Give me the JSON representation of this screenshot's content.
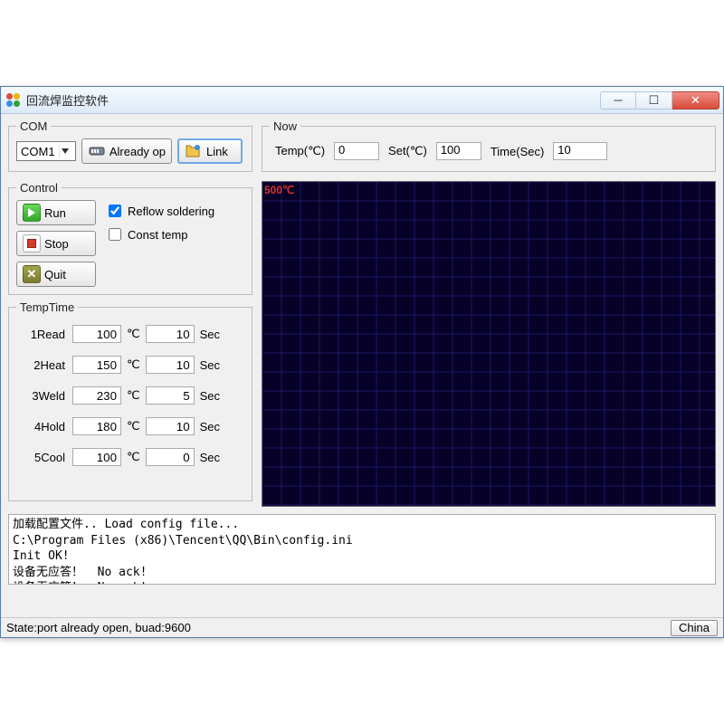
{
  "window": {
    "title": "回流焊监控软件",
    "icon_colors": [
      "#e24b3a",
      "#f2b500",
      "#3a8fdc",
      "#2fa032"
    ]
  },
  "com": {
    "legend": "COM",
    "port_value": "COM1",
    "already_open_label": "Already op",
    "link_label": "Link"
  },
  "now": {
    "legend": "Now",
    "temp_label": "Temp(℃)",
    "temp_value": "0",
    "set_label": "Set(℃)",
    "set_value": "100",
    "time_label": "Time(Sec)",
    "time_value": "10"
  },
  "control": {
    "legend": "Control",
    "run_label": "Run",
    "stop_label": "Stop",
    "quit_label": "Quit",
    "reflow_label": "Reflow soldering",
    "reflow_checked": true,
    "const_label": "Const temp",
    "const_checked": false
  },
  "temptime": {
    "legend": "TempTime",
    "deg_unit": "℃",
    "sec_unit": "Sec",
    "rows": [
      {
        "label": "1Read",
        "temp": "100",
        "sec": "10"
      },
      {
        "label": "2Heat",
        "temp": "150",
        "sec": "10"
      },
      {
        "label": "3Weld",
        "temp": "230",
        "sec": "5"
      },
      {
        "label": "4Hold",
        "temp": "180",
        "sec": "10"
      },
      {
        "label": "5Cool",
        "temp": "100",
        "sec": "0"
      }
    ]
  },
  "graph": {
    "y_max_label": "500℃",
    "background_color": "#070027",
    "grid_color": "#1a1a66",
    "grid_step": 21,
    "label_color": "#d8322c"
  },
  "log": {
    "lines": [
      "加载配置文件.. Load config file...",
      "C:\\Program Files (x86)\\Tencent\\QQ\\Bin\\config.ini",
      "Init OK!",
      "设备无应答！  No ack!",
      "设备无应答！  No ack!"
    ]
  },
  "statusbar": {
    "state_text": "State:port already open, buad:9600",
    "lang_label": "China"
  }
}
